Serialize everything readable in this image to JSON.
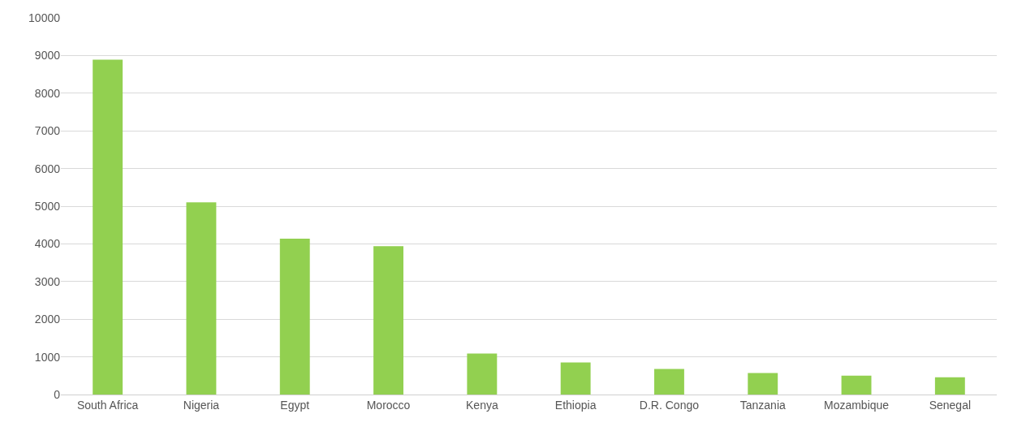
{
  "chart_data": {
    "type": "bar",
    "categories": [
      "South Africa",
      "Nigeria",
      "Egypt",
      "Morocco",
      "Kenya",
      "Ethiopia",
      "D.R. Congo",
      "Tanzania",
      "Mozambique",
      "Senegal"
    ],
    "values": [
      8890,
      5100,
      4140,
      3940,
      1090,
      850,
      680,
      570,
      500,
      460
    ],
    "color": "#92d050",
    "ylim": [
      0,
      10000
    ],
    "yticks": [
      0,
      1000,
      2000,
      3000,
      4000,
      5000,
      6000,
      7000,
      8000,
      9000,
      10000
    ],
    "grid": "y"
  }
}
